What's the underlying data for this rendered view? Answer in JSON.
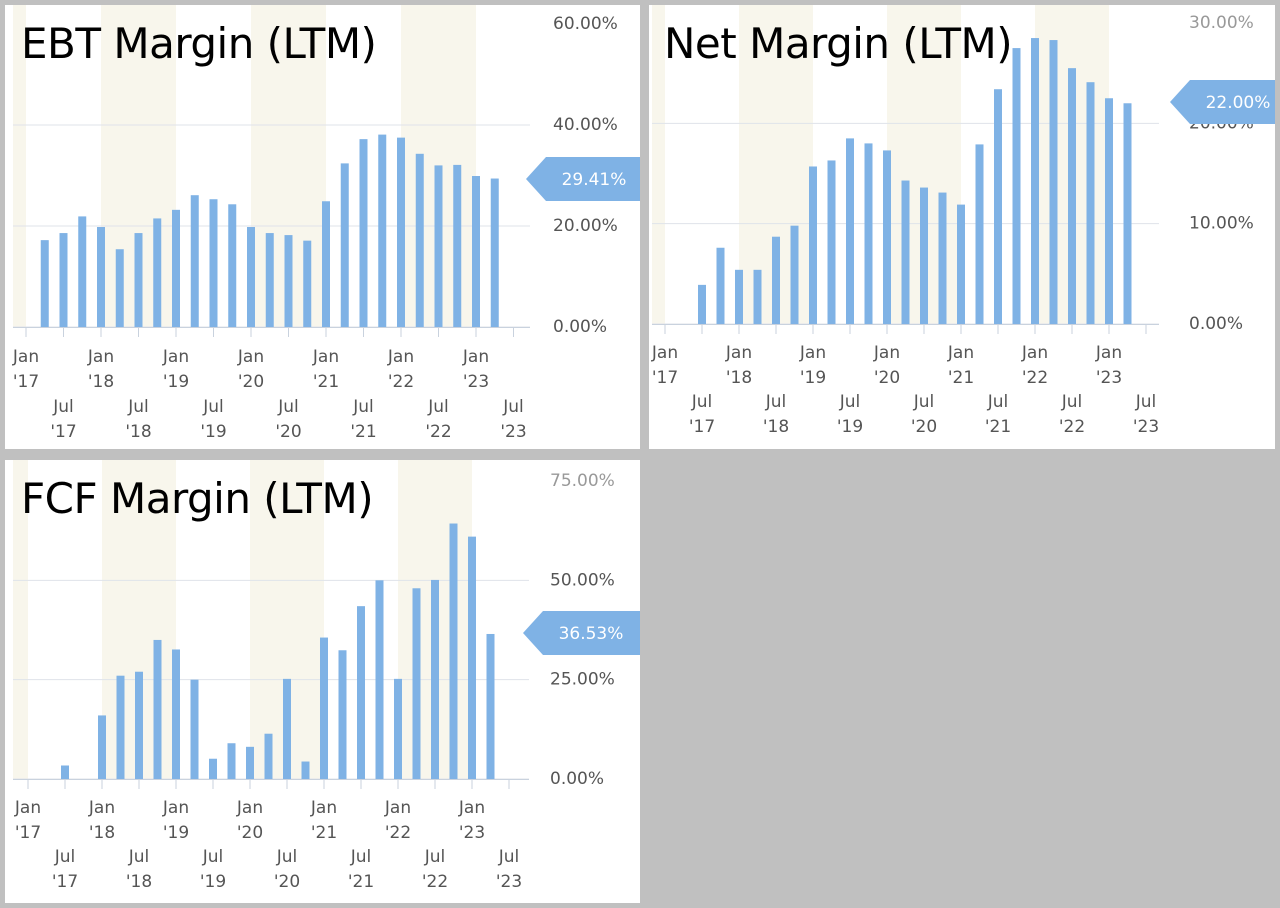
{
  "colors": {
    "page_background": "#c0c0c0",
    "panel_background": "#ffffff",
    "bar": "#7fb2e5",
    "bar_projected": "#b5d3f2",
    "shade": "#f8f6ec",
    "gridline": "#dfe3ea",
    "value_badge": "#7fb2e5"
  },
  "panels": [
    {
      "title": "EBT Margin (LTM)",
      "value_badge": "29.41%",
      "chart_data": {
        "type": "bar",
        "title": "EBT Margin (LTM)",
        "ytick_labels": [
          "60.00%",
          "40.00%",
          "20.00%",
          "0.00%"
        ],
        "ylim": [
          0,
          60
        ],
        "y_unit": "%",
        "grid": true,
        "x_tick_labels_top": [
          "Jan '17",
          "Jan '18",
          "Jan '19",
          "Jan '20",
          "Jan '21",
          "Jan '22",
          "Jan '23"
        ],
        "x_tick_labels_bottom": [
          "Jul '17",
          "Jul '18",
          "Jul '19",
          "Jul '20",
          "Jul '21",
          "Jul '22",
          "Jul '23"
        ],
        "shaded_years": [
          "2017",
          "2018",
          "2020",
          "2022"
        ],
        "current_value_label": "29.41%",
        "series": [
          {
            "x": [
              "2017-Q2",
              "2017-Q3",
              "2017-Q4",
              "2018-Q1",
              "2018-Q2",
              "2018-Q3",
              "2018-Q4",
              "2019-Q1",
              "2019-Q2",
              "2019-Q3",
              "2019-Q4",
              "2020-Q1",
              "2020-Q2",
              "2020-Q3",
              "2020-Q4",
              "2021-Q1",
              "2021-Q2",
              "2021-Q3",
              "2021-Q4",
              "2022-Q1",
              "2022-Q2",
              "2022-Q3",
              "2022-Q4",
              "2023-Q1",
              "2023-Q2"
            ],
            "values": [
              17.2,
              18.6,
              21.9,
              19.8,
              15.4,
              18.6,
              21.5,
              23.2,
              26.1,
              25.3,
              24.3,
              19.8,
              18.6,
              18.2,
              17.1,
              24.9,
              32.4,
              37.2,
              38.1,
              37.5,
              34.3,
              32.0,
              32.1,
              29.9,
              29.4
            ]
          }
        ]
      }
    },
    {
      "title": "Net Margin (LTM)",
      "value_badge": "22.00%",
      "chart_data": {
        "type": "bar",
        "title": "Net Margin (LTM)",
        "ytick_labels": [
          "30.00%",
          "20.00%",
          "10.00%",
          "0.00%"
        ],
        "ylim": [
          0,
          30
        ],
        "y_unit": "%",
        "grid": true,
        "x_tick_labels_top": [
          "Jan '17",
          "Jan '18",
          "Jan '19",
          "Jan '20",
          "Jan '21",
          "Jan '22",
          "Jan '23"
        ],
        "x_tick_labels_bottom": [
          "Jul '17",
          "Jul '18",
          "Jul '19",
          "Jul '20",
          "Jul '21",
          "Jul '22",
          "Jul '23"
        ],
        "shaded_years": [
          "2017",
          "2018",
          "2020",
          "2022"
        ],
        "current_value_label": "22.00%",
        "series": [
          {
            "x": [
              "2017-Q3",
              "2017-Q4",
              "2018-Q1",
              "2018-Q2",
              "2018-Q3",
              "2018-Q4",
              "2019-Q1",
              "2019-Q2",
              "2019-Q3",
              "2019-Q4",
              "2020-Q1",
              "2020-Q2",
              "2020-Q3",
              "2020-Q4",
              "2021-Q1",
              "2021-Q2",
              "2021-Q3",
              "2021-Q4",
              "2022-Q1",
              "2022-Q2",
              "2022-Q3",
              "2022-Q4",
              "2023-Q1",
              "2023-Q2"
            ],
            "values": [
              3.9,
              7.6,
              5.4,
              5.4,
              8.7,
              9.8,
              15.7,
              16.3,
              18.5,
              18.0,
              17.3,
              14.3,
              13.6,
              13.1,
              11.9,
              17.9,
              23.4,
              27.5,
              28.5,
              28.3,
              25.5,
              24.1,
              22.5,
              22.0
            ]
          }
        ]
      }
    },
    {
      "title": "FCF Margin (LTM)",
      "value_badge": "36.53%",
      "chart_data": {
        "type": "bar",
        "title": "FCF Margin (LTM)",
        "ytick_labels": [
          "75.00%",
          "50.00%",
          "25.00%",
          "0.00%"
        ],
        "ylim": [
          0,
          75
        ],
        "y_unit": "%",
        "grid": true,
        "x_tick_labels_top": [
          "Jan '17",
          "Jan '18",
          "Jan '19",
          "Jan '20",
          "Jan '21",
          "Jan '22",
          "Jan '23"
        ],
        "x_tick_labels_bottom": [
          "Jul '17",
          "Jul '18",
          "Jul '19",
          "Jul '20",
          "Jul '21",
          "Jul '22",
          "Jul '23"
        ],
        "shaded_years": [
          "2017",
          "2018",
          "2020",
          "2022"
        ],
        "current_value_label": "36.53%",
        "series": [
          {
            "x": [
              "2017-Q1",
              "2017-Q2",
              "2017-Q3",
              "2017-Q4",
              "2018-Q1",
              "2018-Q2",
              "2018-Q3",
              "2018-Q4",
              "2019-Q1",
              "2019-Q2",
              "2019-Q3",
              "2019-Q4",
              "2020-Q1",
              "2020-Q2",
              "2020-Q3",
              "2020-Q4",
              "2021-Q1",
              "2021-Q2",
              "2021-Q3",
              "2021-Q4",
              "2022-Q1",
              "2022-Q2",
              "2022-Q3",
              "2022-Q4",
              "2023-Q1",
              "2023-Q2"
            ],
            "values": [
              0,
              0,
              3.4,
              0,
              16.0,
              26.0,
              27.0,
              35.0,
              32.6,
              25.0,
              5.1,
              9.0,
              8.1,
              11.4,
              25.2,
              4.4,
              35.6,
              32.4,
              43.5,
              50.0,
              25.2,
              48.0,
              50.1,
              64.3,
              61.0,
              36.5
            ]
          }
        ]
      }
    }
  ]
}
